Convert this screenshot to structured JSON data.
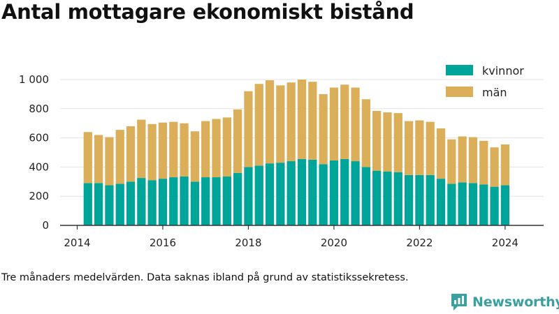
{
  "title": "Antal mottagare ekonomiskt bistånd",
  "note": "Tre månaders medelvärden. Data saknas ibland på grund av statistikssekretess.",
  "brand": {
    "name": "Newsworthy",
    "logo_icon": "newsworthy-logo-icon",
    "color": "#39a0a0"
  },
  "chart_data": {
    "type": "bar",
    "stacked": true,
    "title": "Antal mottagare ekonomiskt bistånd",
    "xlabel": "",
    "ylabel": "",
    "xlim": [
      2013.6,
      2024.9
    ],
    "ylim": [
      0,
      1000
    ],
    "yticks": [
      0,
      200,
      400,
      600,
      800,
      1000
    ],
    "ytick_labels": [
      "0",
      "200",
      "400",
      "600",
      "800",
      "1 000"
    ],
    "xticks": [
      2014,
      2016,
      2018,
      2020,
      2022,
      2024
    ],
    "xtick_labels": [
      "2014",
      "2016",
      "2018",
      "2020",
      "2022",
      "2024"
    ],
    "grid": "horizontal",
    "legend_position": "top-right",
    "x": [
      2014.25,
      2014.5,
      2014.75,
      2015.0,
      2015.25,
      2015.5,
      2015.75,
      2016.0,
      2016.25,
      2016.5,
      2016.75,
      2017.0,
      2017.25,
      2017.5,
      2017.75,
      2018.0,
      2018.25,
      2018.5,
      2018.75,
      2019.0,
      2019.25,
      2019.5,
      2019.75,
      2020.0,
      2020.25,
      2020.5,
      2020.75,
      2021.0,
      2021.25,
      2021.5,
      2021.75,
      2022.0,
      2022.25,
      2022.5,
      2022.75,
      2023.0,
      2023.25,
      2023.5,
      2023.75,
      2024.0
    ],
    "series": [
      {
        "name": "kvinnor",
        "color": "#00a59a",
        "values": [
          290,
          290,
          275,
          285,
          300,
          325,
          310,
          320,
          330,
          335,
          300,
          330,
          330,
          335,
          360,
          400,
          410,
          425,
          430,
          440,
          455,
          450,
          420,
          445,
          455,
          440,
          400,
          375,
          370,
          365,
          345,
          345,
          345,
          320,
          285,
          295,
          290,
          280,
          265,
          275
        ]
      },
      {
        "name": "män",
        "color": "#dbaf5a",
        "values": [
          350,
          330,
          330,
          370,
          380,
          400,
          385,
          385,
          380,
          365,
          345,
          385,
          400,
          405,
          435,
          520,
          560,
          570,
          530,
          540,
          545,
          535,
          480,
          500,
          510,
          505,
          465,
          410,
          405,
          405,
          370,
          375,
          365,
          345,
          305,
          315,
          315,
          300,
          270,
          280
        ]
      }
    ]
  }
}
